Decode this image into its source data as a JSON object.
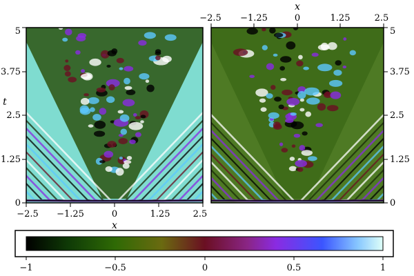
{
  "left_panel": {
    "x_label": "x",
    "y_label": "t",
    "x_ticks": [
      "−2.5",
      "−1.25",
      "0",
      "1.25",
      "2.5"
    ],
    "y_ticks": [
      "0",
      "1.25",
      "2.5",
      "3.75",
      "5"
    ]
  },
  "right_panel": {
    "x_label": "x",
    "x_ticks": [
      "−2.5",
      "−1.25",
      "0",
      "1.25",
      "2.5"
    ],
    "y_ticks": [
      "0",
      "1.25",
      "2.5",
      "3.75",
      "5"
    ]
  },
  "colorbar": {
    "ticks": [
      "−1",
      "−0.5",
      "0",
      "0.5",
      "1"
    ],
    "colors": [
      "#000000",
      "#1f6b06",
      "#6b0f2a",
      "#8a2be2",
      "#3b5bff",
      "#ffffff"
    ]
  }
}
